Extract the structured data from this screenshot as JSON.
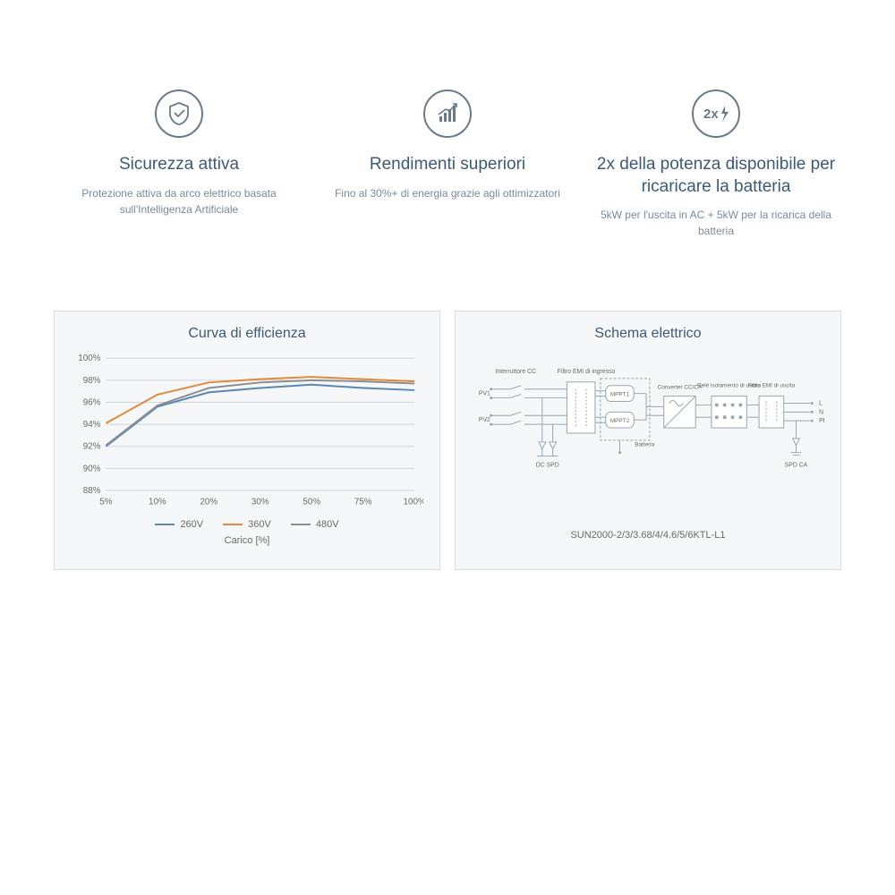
{
  "features": [
    {
      "title": "Sicurezza attiva",
      "desc": "Protezione attiva da arco elettrico basata sull'Intelligenza Artificiale"
    },
    {
      "title": "Rendimenti superiori",
      "desc": "Fino al 30%+ di energia grazie agli ottimizzatori"
    },
    {
      "title": "2x della potenza disponibile per ricaricare la batteria",
      "desc": "5kW per l'uscita in AC + 5kW per la ricarica della batteria"
    }
  ],
  "efficiency_chart": {
    "title": "Curva di efficienza",
    "type": "line",
    "x_categories": [
      "5%",
      "10%",
      "20%",
      "30%",
      "50%",
      "75%",
      "100%"
    ],
    "x_label": "Carico [%]",
    "y_ticks": [
      "88%",
      "90%",
      "92%",
      "94%",
      "96%",
      "98%",
      "100%"
    ],
    "ylim": [
      88,
      100
    ],
    "grid_color": "#d0d5da",
    "background_color": "#f5f7f8",
    "label_fontsize": 10,
    "title_fontsize": 16,
    "line_width": 2,
    "series": [
      {
        "name": "260V",
        "color": "#5b87b5",
        "values": [
          92,
          95.6,
          96.9,
          97.3,
          97.6,
          97.3,
          97.1
        ]
      },
      {
        "name": "360V",
        "color": "#e08a3a",
        "values": [
          94.1,
          96.7,
          97.8,
          98.1,
          98.3,
          98.1,
          97.9
        ]
      },
      {
        "name": "480V",
        "color": "#8a8f94",
        "values": [
          92.1,
          95.7,
          97.3,
          97.8,
          98.0,
          97.9,
          97.7
        ]
      }
    ]
  },
  "schematic": {
    "title": "Schema elettrico",
    "model": "SUN2000-2/3/3.68/4/4.6/5/6KTL-L1",
    "labels": {
      "interruttore": "Interruttore CC",
      "filtro_in": "Filtro EMI di ingresso",
      "pv1": "PV1",
      "pv2": "PV2",
      "dc_spd": "DC SPD",
      "mppt1": "MPPT1",
      "mppt2": "MPPT2",
      "batteria": "Batteria",
      "converter": "Converter CC/CA",
      "rele": "Relé isolamento di uscita",
      "filtro_out": "Filtro EMI di uscita",
      "L": "L",
      "N": "N",
      "PE": "PE",
      "spd_ca": "SPD CA"
    },
    "colors": {
      "box_stroke": "#9aa5b0",
      "wire": "#9aa5b0",
      "text": "#6a6a6a",
      "mppt_fill": "#ffffff"
    }
  }
}
